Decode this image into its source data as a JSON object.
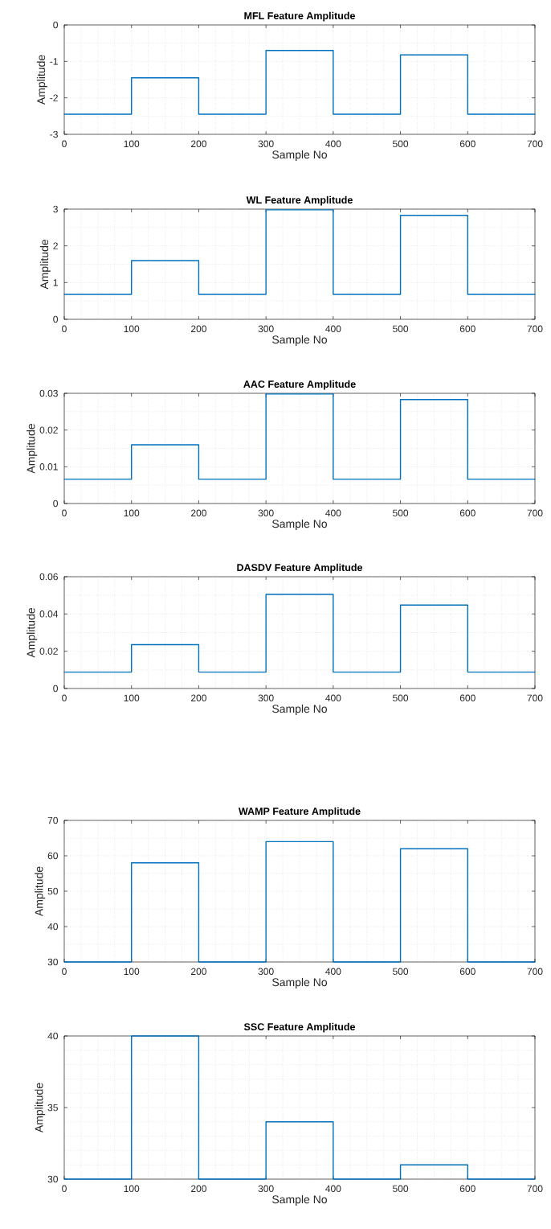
{
  "chart_data": [
    {
      "type": "step",
      "title": "MFL Feature Amplitude",
      "xlabel": "Sample No",
      "ylabel": "Amplitude",
      "color": "#0072bd",
      "grid": true,
      "x": [
        0,
        100,
        200,
        300,
        400,
        500,
        600,
        700
      ],
      "values": [
        -2.45,
        -1.45,
        -2.45,
        -0.7,
        -2.45,
        -0.82,
        -2.45,
        -2.45
      ],
      "xlim": [
        0,
        700
      ],
      "ylim": [
        -3,
        0
      ],
      "xticks": [
        0,
        100,
        200,
        300,
        400,
        500,
        600,
        700
      ],
      "yticks": [
        -3,
        -2,
        -1,
        0
      ]
    },
    {
      "type": "step",
      "title": "WL Feature Amplitude",
      "xlabel": "Sample No",
      "ylabel": "Amplitude",
      "color": "#0072bd",
      "grid": true,
      "x": [
        0,
        100,
        200,
        300,
        400,
        500,
        600,
        700
      ],
      "values": [
        0.68,
        1.6,
        0.68,
        2.98,
        0.68,
        2.83,
        0.68,
        0.68
      ],
      "xlim": [
        0,
        700
      ],
      "ylim": [
        0,
        3
      ],
      "xticks": [
        0,
        100,
        200,
        300,
        400,
        500,
        600,
        700
      ],
      "yticks": [
        0,
        1,
        2,
        3
      ]
    },
    {
      "type": "step",
      "title": "AAC Feature Amplitude",
      "xlabel": "Sample No",
      "ylabel": "Amplitude",
      "color": "#0072bd",
      "grid": true,
      "x": [
        0,
        100,
        200,
        300,
        400,
        500,
        600,
        700
      ],
      "values": [
        0.0066,
        0.016,
        0.0066,
        0.0298,
        0.0066,
        0.0283,
        0.0066,
        0.0066
      ],
      "xlim": [
        0,
        700
      ],
      "ylim": [
        0,
        0.03
      ],
      "xticks": [
        0,
        100,
        200,
        300,
        400,
        500,
        600,
        700
      ],
      "yticks": [
        0,
        0.01,
        0.02,
        0.03
      ]
    },
    {
      "type": "step",
      "title": "DASDV Feature Amplitude",
      "xlabel": "Sample No",
      "ylabel": "Amplitude",
      "color": "#0072bd",
      "grid": true,
      "x": [
        0,
        100,
        200,
        300,
        400,
        500,
        600,
        700
      ],
      "values": [
        0.0088,
        0.0235,
        0.0088,
        0.0505,
        0.0088,
        0.0448,
        0.0088,
        0.0088
      ],
      "xlim": [
        0,
        700
      ],
      "ylim": [
        0,
        0.06
      ],
      "xticks": [
        0,
        100,
        200,
        300,
        400,
        500,
        600,
        700
      ],
      "yticks": [
        0,
        0.02,
        0.04,
        0.06
      ]
    },
    {
      "type": "step",
      "title": "WAMP Feature Amplitude",
      "xlabel": "Sample No",
      "ylabel": "Amplitude",
      "color": "#0072bd",
      "grid": true,
      "x": [
        0,
        100,
        200,
        300,
        400,
        500,
        600,
        700
      ],
      "values": [
        30,
        58,
        30,
        64,
        30,
        62,
        30,
        30
      ],
      "xlim": [
        0,
        700
      ],
      "ylim": [
        30,
        70
      ],
      "xticks": [
        0,
        100,
        200,
        300,
        400,
        500,
        600,
        700
      ],
      "yticks": [
        30,
        40,
        50,
        60,
        70
      ]
    },
    {
      "type": "step",
      "title": "SSC Feature Amplitude",
      "xlabel": "Sample No",
      "ylabel": "Amplitude",
      "color": "#0072bd",
      "grid": true,
      "x": [
        0,
        100,
        200,
        300,
        400,
        500,
        600,
        700
      ],
      "values": [
        30,
        40,
        30,
        34,
        30,
        31,
        30,
        30
      ],
      "xlim": [
        0,
        700
      ],
      "ylim": [
        30,
        40
      ],
      "xticks": [
        0,
        100,
        200,
        300,
        400,
        500,
        600,
        700
      ],
      "yticks": [
        30,
        35,
        40
      ]
    }
  ]
}
